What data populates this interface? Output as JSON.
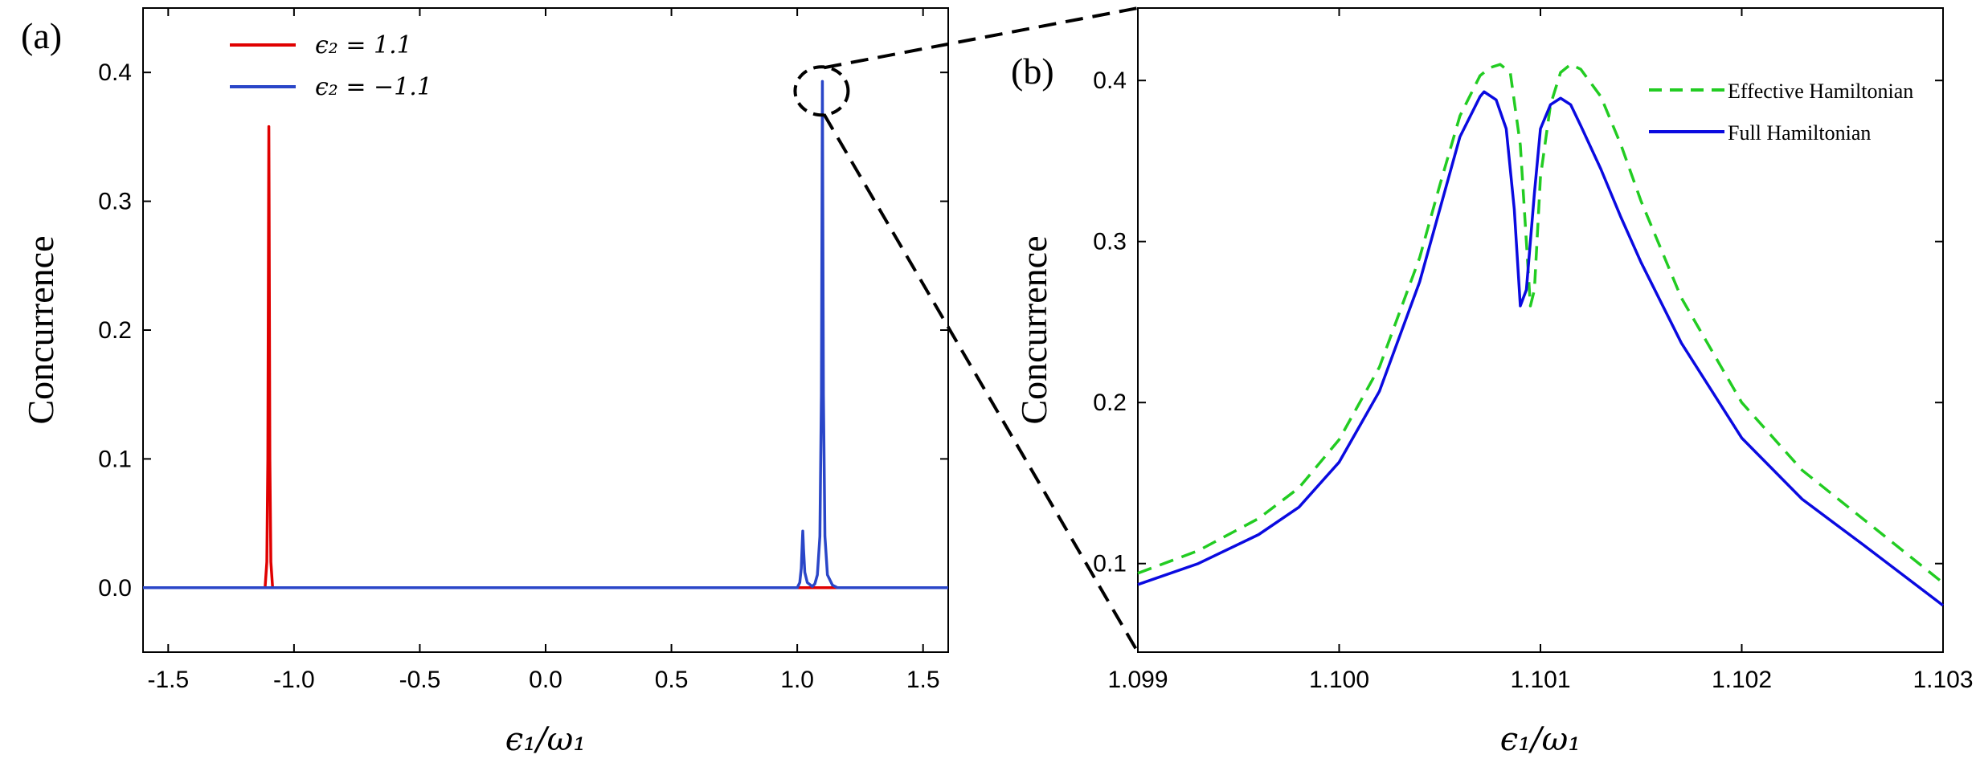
{
  "panel_a_label": "(a)",
  "panel_b_label": "(b)",
  "colors": {
    "red": "#e00000",
    "blue": "#2a46c8",
    "blue_b": "#0a0ae0",
    "green": "#22cc22",
    "axis": "#000000"
  },
  "chart_data": [
    {
      "type": "line",
      "panel": "(a)",
      "xlabel": "ϵ₁/ω₁",
      "ylabel": "Concurrence",
      "xlim": [
        -1.6,
        1.6
      ],
      "ylim": [
        -0.05,
        0.45
      ],
      "x_ticks": [
        "-1.5",
        "-1.0",
        "-0.5",
        "0.0",
        "0.5",
        "1.0",
        "1.5"
      ],
      "x_tick_values": [
        -1.5,
        -1.0,
        -0.5,
        0.0,
        0.5,
        1.0,
        1.5
      ],
      "y_ticks": [
        "0.0",
        "0.1",
        "0.2",
        "0.3",
        "0.4"
      ],
      "y_tick_values": [
        0.0,
        0.1,
        0.2,
        0.3,
        0.4
      ],
      "legend_position": "top-left",
      "series": [
        {
          "name": "ϵ₂ = 1.1",
          "color": "#e00000",
          "points": [
            [
              -1.6,
              0
            ],
            [
              -1.115,
              0
            ],
            [
              -1.108,
              0.02
            ],
            [
              -1.104,
              0.1
            ],
            [
              -1.101,
              0.3
            ],
            [
              -1.1,
              0.358
            ],
            [
              -1.099,
              0.3
            ],
            [
              -1.096,
              0.1
            ],
            [
              -1.092,
              0.02
            ],
            [
              -1.085,
              0
            ],
            [
              1.6,
              0
            ]
          ]
        },
        {
          "name": "ϵ₂ = −1.1",
          "color": "#2a46c8",
          "points": [
            [
              -1.6,
              0
            ],
            [
              1.0,
              0
            ],
            [
              1.01,
              0.004
            ],
            [
              1.016,
              0.015
            ],
            [
              1.02,
              0.035
            ],
            [
              1.022,
              0.044
            ],
            [
              1.025,
              0.03
            ],
            [
              1.03,
              0.012
            ],
            [
              1.04,
              0.004
            ],
            [
              1.06,
              0.001
            ],
            [
              1.07,
              0.003
            ],
            [
              1.08,
              0.01
            ],
            [
              1.09,
              0.04
            ],
            [
              1.096,
              0.15
            ],
            [
              1.099,
              0.33
            ],
            [
              1.1,
              0.393
            ],
            [
              1.101,
              0.33
            ],
            [
              1.104,
              0.15
            ],
            [
              1.11,
              0.04
            ],
            [
              1.12,
              0.01
            ],
            [
              1.14,
              0.002
            ],
            [
              1.16,
              0
            ],
            [
              1.6,
              0
            ]
          ]
        }
      ],
      "annotation": "dashed circle around peak near ϵ₁/ω₁ = 1.1 magnified in (b)"
    },
    {
      "type": "line",
      "panel": "(b)",
      "xlabel": "ϵ₁/ω₁",
      "ylabel": "Concurrence",
      "xlim": [
        1.099,
        1.103
      ],
      "ylim": [
        0.045,
        0.445
      ],
      "x_ticks": [
        "1.099",
        "1.100",
        "1.101",
        "1.102",
        "1.103"
      ],
      "x_tick_values": [
        1.099,
        1.1,
        1.101,
        1.102,
        1.103
      ],
      "y_ticks": [
        "0.1",
        "0.2",
        "0.3",
        "0.4"
      ],
      "y_tick_values": [
        0.1,
        0.2,
        0.3,
        0.4
      ],
      "legend_position": "top-right",
      "series": [
        {
          "name": "Effective Hamiltonian",
          "color": "#22cc22",
          "style": "dashed",
          "points": [
            [
              1.099,
              0.094
            ],
            [
              1.0993,
              0.108
            ],
            [
              1.0996,
              0.128
            ],
            [
              1.0998,
              0.147
            ],
            [
              1.1,
              0.177
            ],
            [
              1.1002,
              0.222
            ],
            [
              1.1004,
              0.29
            ],
            [
              1.1005,
              0.335
            ],
            [
              1.1006,
              0.378
            ],
            [
              1.1007,
              0.403
            ],
            [
              1.10075,
              0.408
            ],
            [
              1.1008,
              0.41
            ],
            [
              1.10085,
              0.405
            ],
            [
              1.1009,
              0.36
            ],
            [
              1.10093,
              0.3
            ],
            [
              1.10095,
              0.26
            ],
            [
              1.10097,
              0.27
            ],
            [
              1.101,
              0.34
            ],
            [
              1.10105,
              0.385
            ],
            [
              1.1011,
              0.405
            ],
            [
              1.10115,
              0.41
            ],
            [
              1.1012,
              0.407
            ],
            [
              1.1013,
              0.39
            ],
            [
              1.1014,
              0.36
            ],
            [
              1.1015,
              0.325
            ],
            [
              1.1017,
              0.265
            ],
            [
              1.102,
              0.2
            ],
            [
              1.1023,
              0.158
            ],
            [
              1.1026,
              0.128
            ],
            [
              1.103,
              0.088
            ]
          ]
        },
        {
          "name": "Full Hamiltonian",
          "color": "#0a0ae0",
          "style": "solid",
          "points": [
            [
              1.099,
              0.087
            ],
            [
              1.0993,
              0.1
            ],
            [
              1.0996,
              0.118
            ],
            [
              1.0998,
              0.135
            ],
            [
              1.1,
              0.163
            ],
            [
              1.1002,
              0.207
            ],
            [
              1.1004,
              0.275
            ],
            [
              1.1005,
              0.32
            ],
            [
              1.1006,
              0.365
            ],
            [
              1.1007,
              0.39
            ],
            [
              1.10072,
              0.393
            ],
            [
              1.10078,
              0.388
            ],
            [
              1.10083,
              0.37
            ],
            [
              1.10087,
              0.32
            ],
            [
              1.1009,
              0.26
            ],
            [
              1.10093,
              0.27
            ],
            [
              1.10097,
              0.33
            ],
            [
              1.101,
              0.37
            ],
            [
              1.10105,
              0.385
            ],
            [
              1.1011,
              0.389
            ],
            [
              1.10115,
              0.385
            ],
            [
              1.1012,
              0.372
            ],
            [
              1.1013,
              0.345
            ],
            [
              1.1014,
              0.315
            ],
            [
              1.1015,
              0.287
            ],
            [
              1.1017,
              0.237
            ],
            [
              1.102,
              0.178
            ],
            [
              1.1023,
              0.14
            ],
            [
              1.1026,
              0.112
            ],
            [
              1.103,
              0.074
            ]
          ]
        }
      ]
    }
  ]
}
